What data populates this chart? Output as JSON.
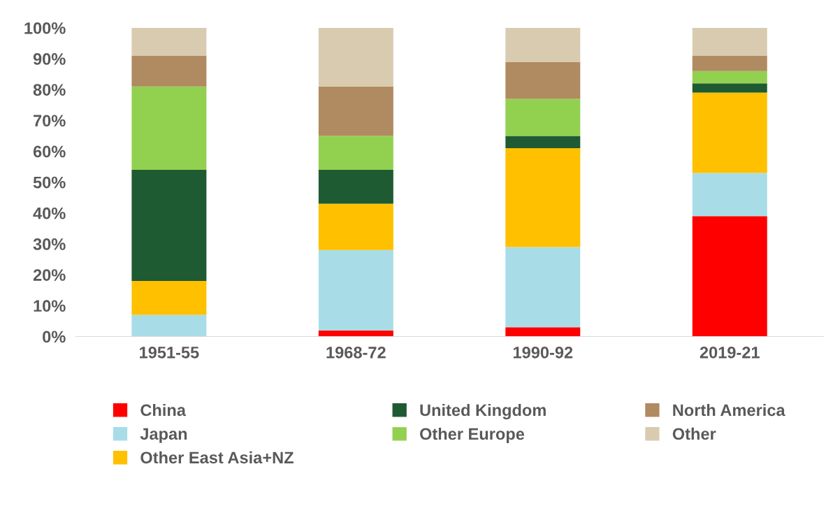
{
  "chart_data": {
    "type": "bar",
    "stacked": true,
    "categories": [
      "1951-55",
      "1968-72",
      "1990-92",
      "2019-21"
    ],
    "series": [
      {
        "name": "China",
        "color": "#ff0000",
        "values": [
          0,
          2,
          3,
          39
        ]
      },
      {
        "name": "Japan",
        "color": "#a8dde8",
        "values": [
          7,
          26,
          26,
          14
        ]
      },
      {
        "name": "Other East Asia+NZ",
        "color": "#ffc000",
        "values": [
          11,
          15,
          32,
          26
        ]
      },
      {
        "name": "United Kingdom",
        "color": "#1e5a32",
        "values": [
          36,
          11,
          4,
          3
        ]
      },
      {
        "name": "Other Europe",
        "color": "#92d050",
        "values": [
          27,
          11,
          12,
          4
        ]
      },
      {
        "name": "North America",
        "color": "#b08a60",
        "values": [
          10,
          16,
          12,
          5
        ]
      },
      {
        "name": "Other",
        "color": "#d9cbb0",
        "values": [
          9,
          19,
          11,
          9
        ]
      }
    ],
    "ylim": [
      0,
      100
    ],
    "yticks": [
      {
        "value": 0,
        "label": "0%"
      },
      {
        "value": 10,
        "label": "10%"
      },
      {
        "value": 20,
        "label": "20%"
      },
      {
        "value": 30,
        "label": "30%"
      },
      {
        "value": 40,
        "label": "40%"
      },
      {
        "value": 50,
        "label": "50%"
      },
      {
        "value": 60,
        "label": "60%"
      },
      {
        "value": 70,
        "label": "70%"
      },
      {
        "value": 80,
        "label": "80%"
      },
      {
        "value": 90,
        "label": "90%"
      },
      {
        "value": 100,
        "label": "100%"
      }
    ],
    "grid": false,
    "legend": "bottom"
  }
}
